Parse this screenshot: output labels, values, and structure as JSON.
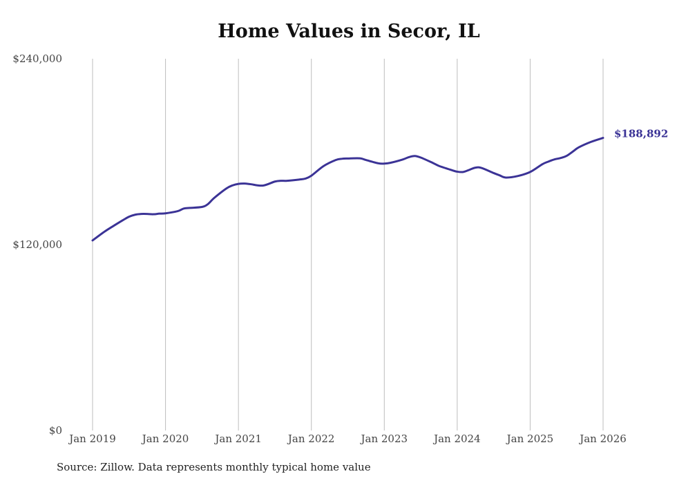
{
  "chart_data": {
    "type": "line",
    "title": "Home Values in Secor, IL",
    "source": "Source: Zillow. Data represents monthly typical home value",
    "xlabel": "",
    "ylabel": "",
    "ylim": [
      0,
      240000
    ],
    "y_ticks": [
      {
        "value": 0,
        "label": "$0"
      },
      {
        "value": 120000,
        "label": "$120,000"
      },
      {
        "value": 240000,
        "label": "$240,000"
      }
    ],
    "x_ticks": [
      {
        "value": 2019,
        "label": "Jan 2019"
      },
      {
        "value": 2020,
        "label": "Jan 2020"
      },
      {
        "value": 2021,
        "label": "Jan 2021"
      },
      {
        "value": 2022,
        "label": "Jan 2022"
      },
      {
        "value": 2023,
        "label": "Jan 2023"
      },
      {
        "value": 2024,
        "label": "Jan 2024"
      },
      {
        "value": 2025,
        "label": "Jan 2025"
      },
      {
        "value": 2026,
        "label": "Jan 2026"
      }
    ],
    "xlim": [
      2019,
      2026
    ],
    "grid": "vertical",
    "line_color": "#3b3396",
    "end_label": "$188,892",
    "series": [
      {
        "name": "Typical home value",
        "x": [
          2019.0,
          2019.167,
          2019.333,
          2019.417,
          2019.5,
          2019.583,
          2019.667,
          2019.75,
          2019.833,
          2019.917,
          2020.0,
          2020.167,
          2020.25,
          2020.333,
          2020.5,
          2020.583,
          2020.667,
          2020.833,
          2020.917,
          2021.0,
          2021.083,
          2021.167,
          2021.333,
          2021.5,
          2021.583,
          2021.667,
          2021.833,
          2021.917,
          2022.0,
          2022.167,
          2022.333,
          2022.417,
          2022.5,
          2022.667,
          2022.75,
          2022.917,
          2023.0,
          2023.083,
          2023.25,
          2023.333,
          2023.417,
          2023.5,
          2023.667,
          2023.75,
          2023.917,
          2024.0,
          2024.083,
          2024.167,
          2024.25,
          2024.333,
          2024.5,
          2024.583,
          2024.667,
          2024.833,
          2025.0,
          2025.167,
          2025.25,
          2025.333,
          2025.417,
          2025.5,
          2025.583,
          2025.667,
          2025.833,
          2026.0
        ],
        "values": [
          122700,
          128500,
          133400,
          135800,
          138000,
          139300,
          139800,
          139800,
          139600,
          140000,
          140200,
          141600,
          143300,
          143700,
          144300,
          146200,
          150100,
          156200,
          158200,
          159200,
          159400,
          159000,
          158100,
          160700,
          161200,
          161200,
          162000,
          162600,
          164500,
          170700,
          174600,
          175400,
          175600,
          175700,
          174600,
          172500,
          172300,
          172800,
          174900,
          176400,
          177200,
          176200,
          172700,
          170800,
          168200,
          167100,
          166900,
          168300,
          169700,
          169500,
          166200,
          164700,
          163300,
          164300,
          166900,
          171900,
          173600,
          175000,
          175900,
          177300,
          180000,
          182800,
          186300,
          188892
        ]
      }
    ]
  }
}
